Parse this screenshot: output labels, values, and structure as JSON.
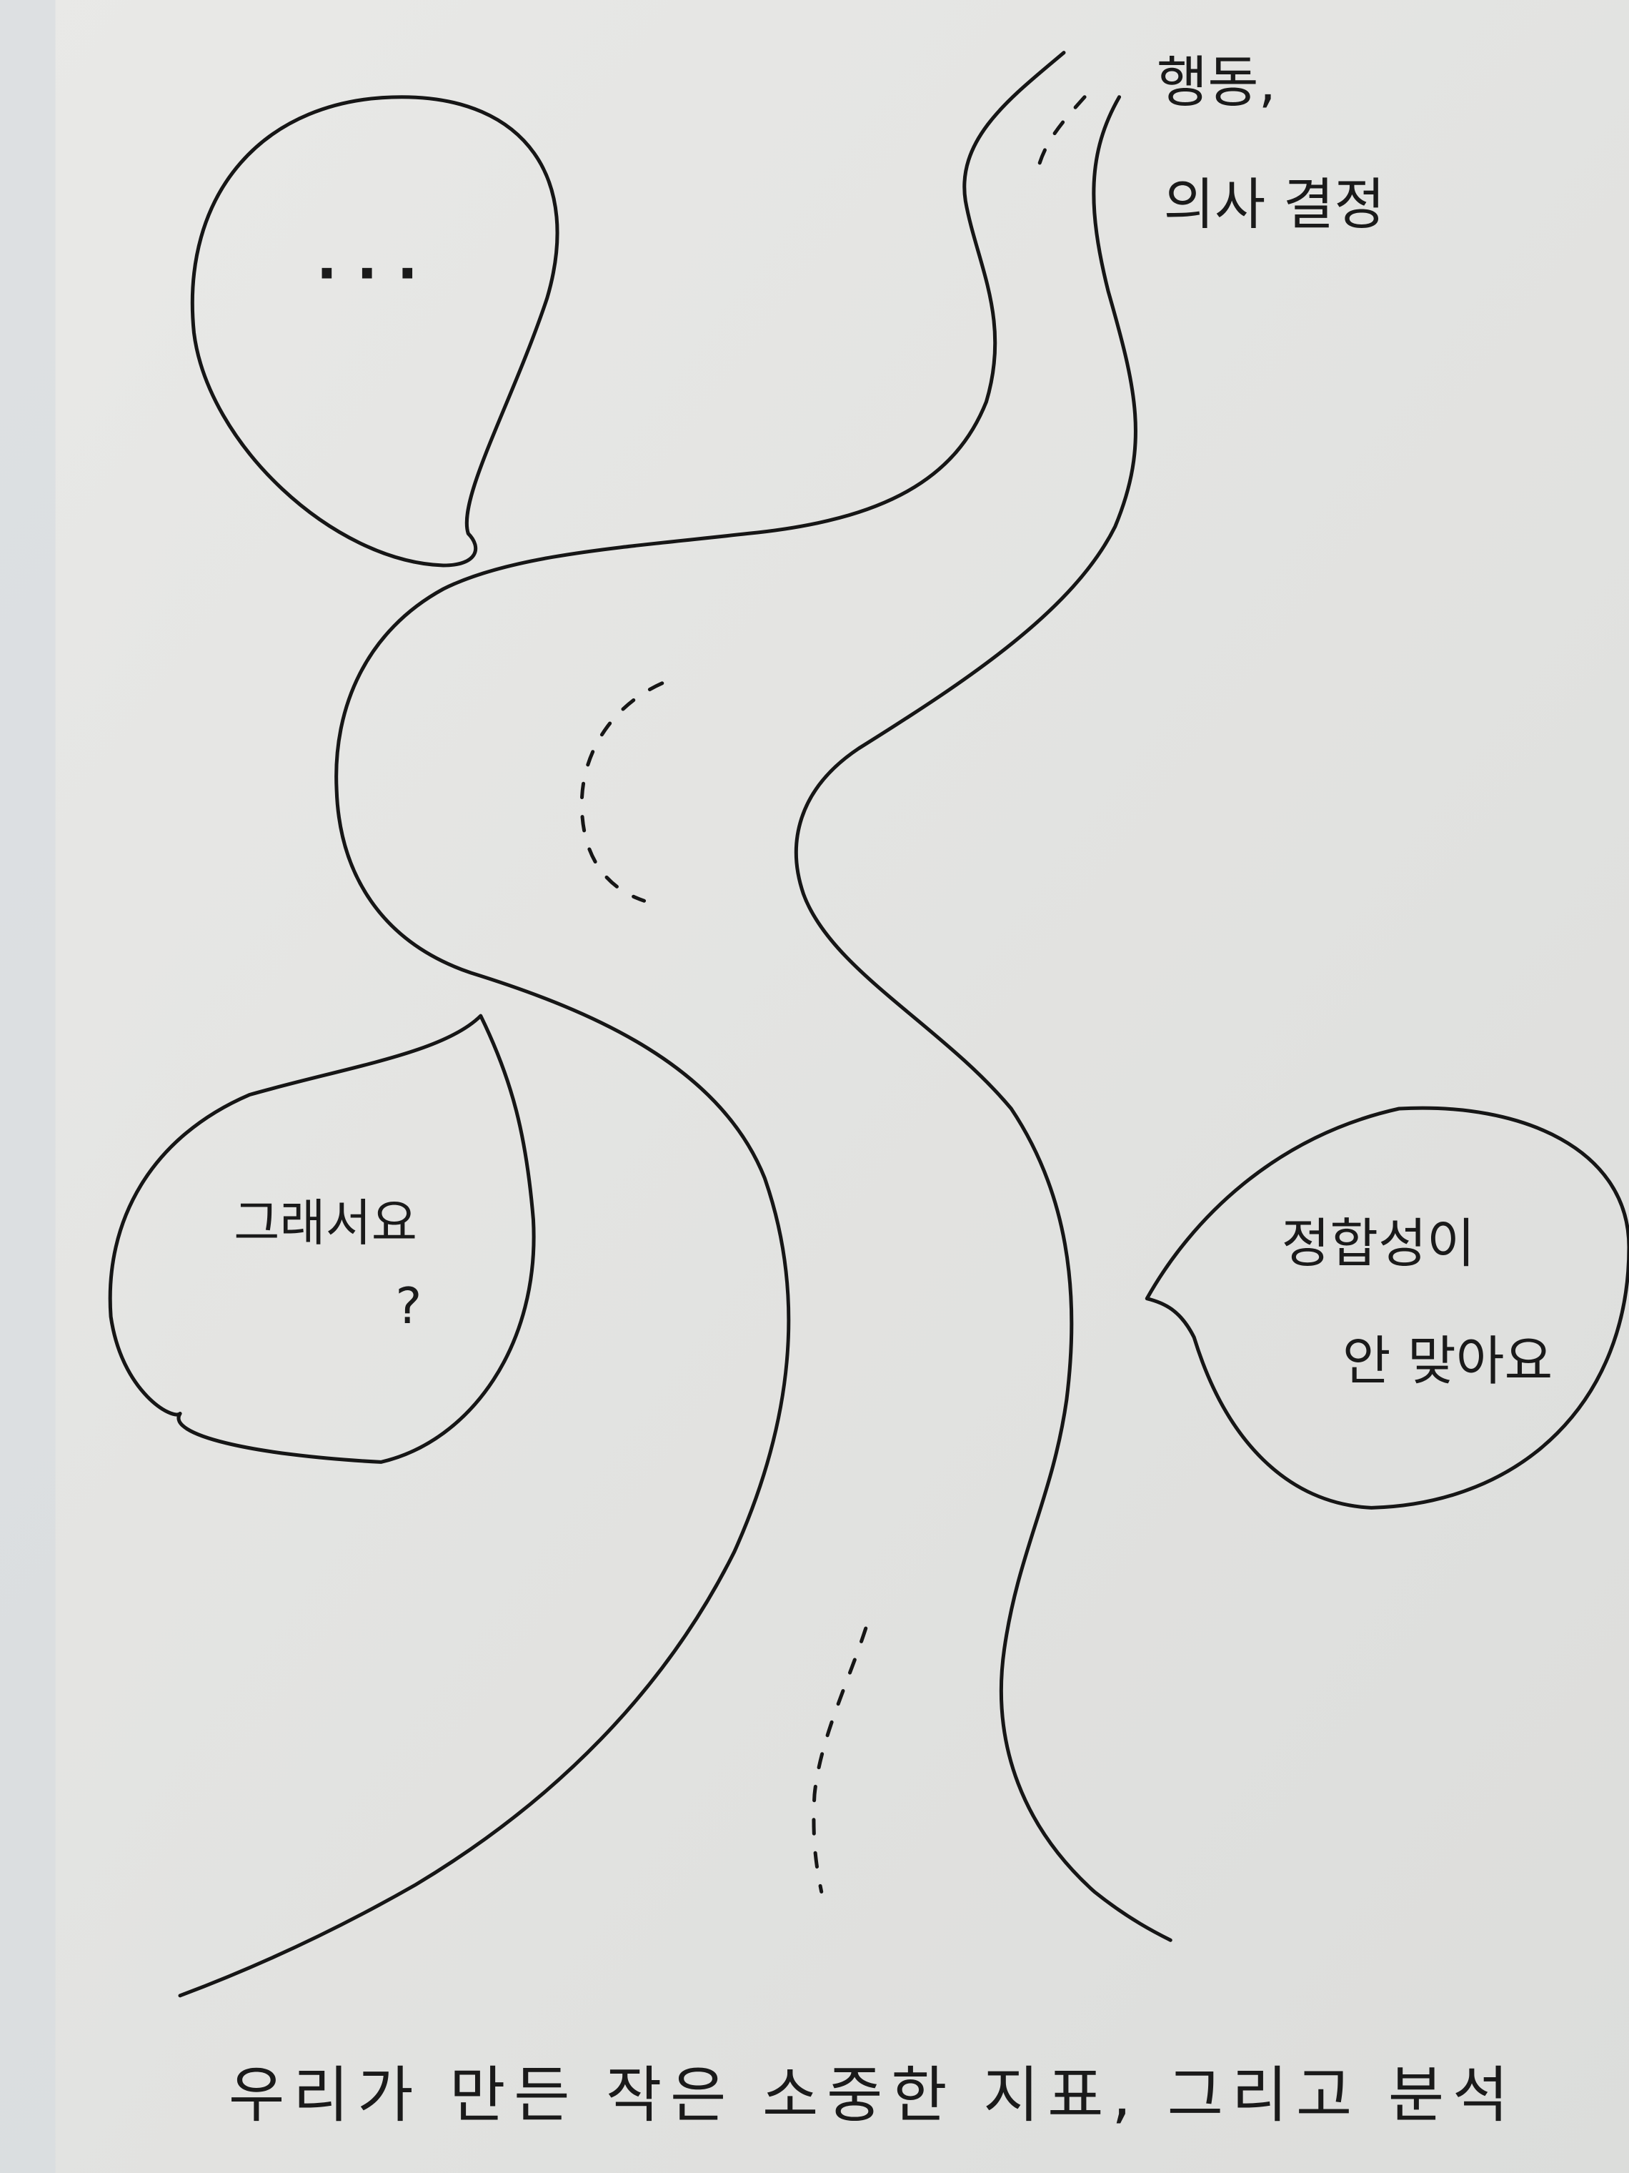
{
  "destination": {
    "lines": [
      "행동,",
      "의사 결정"
    ]
  },
  "bubbles": [
    {
      "lines": [
        "· · ·"
      ]
    },
    {
      "lines": [
        "그래서요",
        "?"
      ]
    },
    {
      "lines": [
        "정합성이",
        "안 맞아요"
      ]
    }
  ],
  "caption": "우리가 만든 작은 소중한 지표, 그리고 분석"
}
